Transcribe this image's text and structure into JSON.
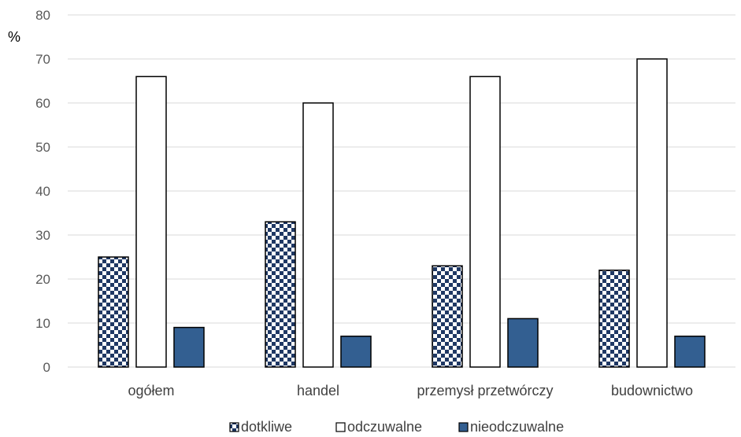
{
  "chart_data": {
    "type": "bar",
    "ylabel": "%",
    "ylim": [
      0,
      80
    ],
    "yticks": [
      0,
      10,
      20,
      30,
      40,
      50,
      60,
      70,
      80
    ],
    "grid": true,
    "legend_position": "bottom",
    "categories": [
      "ogółem",
      "handel",
      "przemysł przetwórczy",
      "budownictwo"
    ],
    "series": [
      {
        "name": "dotkliwe",
        "values": [
          25,
          33,
          23,
          22
        ],
        "pattern": "checkerboard",
        "color": "#1f3864"
      },
      {
        "name": "odczuwalne",
        "values": [
          66,
          60,
          66,
          70
        ],
        "pattern": "solid",
        "color": "#ffffff"
      },
      {
        "name": "nieodczuwalne",
        "values": [
          9,
          7,
          11,
          7
        ],
        "pattern": "solid",
        "color": "#335f91"
      }
    ],
    "colors": {
      "grid": "#d9d9d9",
      "bar_outline": "#000000",
      "tick_text": "#595959",
      "category_text": "#404040"
    }
  }
}
